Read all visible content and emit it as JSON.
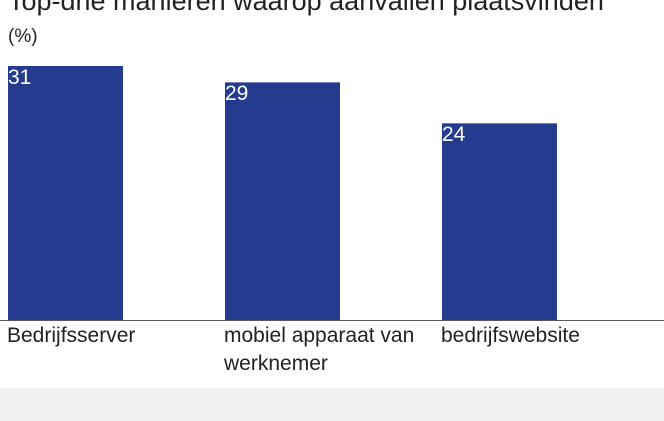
{
  "chart_data": {
    "type": "bar",
    "title": "Top-drie manieren waarop aanvallen plaatsvinden",
    "subtitle": "(%)",
    "categories": [
      "Bedrijfsserver",
      "mobiel apparaat van werknemer",
      "bedrijfswebsite"
    ],
    "values": [
      31,
      29,
      24
    ],
    "color": "#253b8f"
  }
}
